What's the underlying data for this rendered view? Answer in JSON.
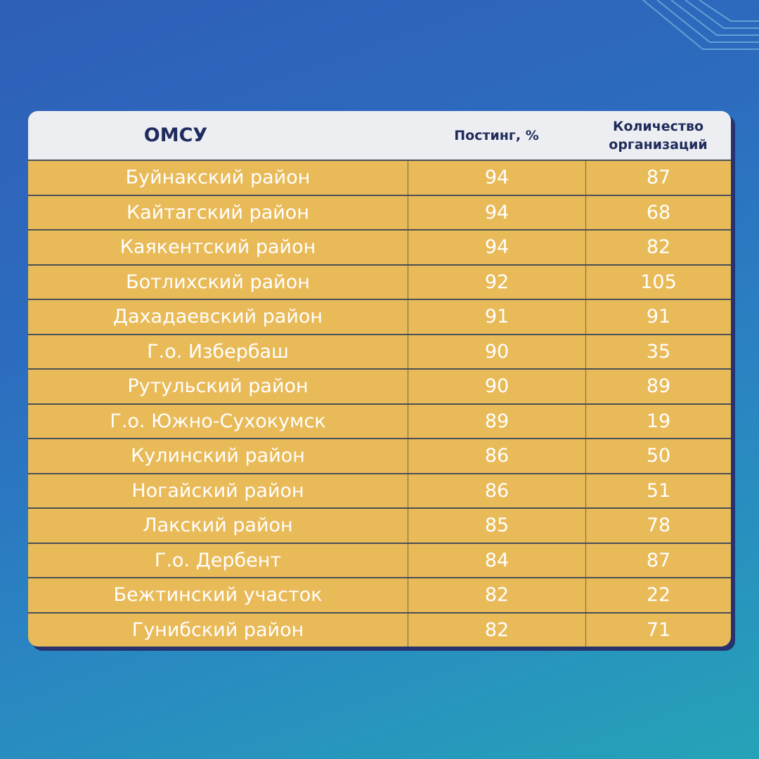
{
  "table": {
    "header": [
      "ОМСУ",
      "Постинг, %",
      "Количество организаций"
    ],
    "rows": [
      [
        "Буйнакский район",
        94,
        87
      ],
      [
        "Кайтагский район",
        94,
        68
      ],
      [
        "Каякентский район",
        94,
        82
      ],
      [
        "Ботлихский район",
        92,
        105
      ],
      [
        "Дахадаевский район",
        91,
        91
      ],
      [
        "Г.о. Избербаш",
        90,
        35
      ],
      [
        "Рутульский район",
        90,
        89
      ],
      [
        "Г.о. Южно-Сухокумск",
        89,
        19
      ],
      [
        "Кулинский район",
        86,
        50
      ],
      [
        "Ногайский район",
        86,
        51
      ],
      [
        "Лакский район",
        85,
        78
      ],
      [
        "Г.о. Дербент",
        84,
        87
      ],
      [
        "Бежтинский участок",
        82,
        22
      ],
      [
        "Гунибский район",
        82,
        71
      ]
    ]
  }
}
